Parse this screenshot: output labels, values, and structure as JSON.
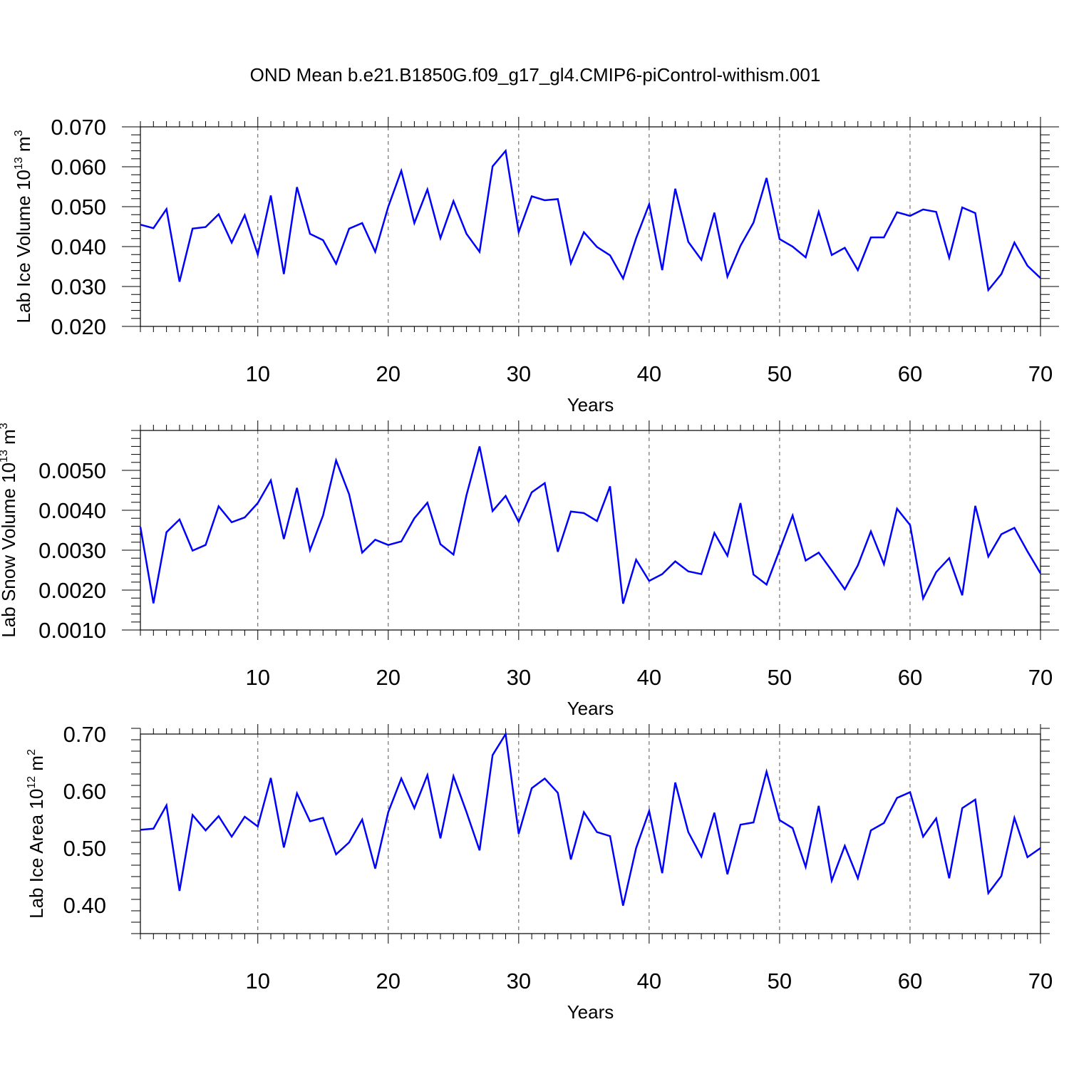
{
  "title": "OND Mean b.e21.B1850G.f09_g17_gl4.CMIP6-piControl-withism.001",
  "colors": {
    "line": "#0000ff",
    "axis": "#000000",
    "grid": "#555555",
    "background": "#ffffff"
  },
  "chart_data": [
    {
      "type": "line",
      "title": "OND Mean b.e21.B1850G.f09_g17_gl4.CMIP6-piControl-withism.001",
      "xlabel": "Years",
      "ylabel_parts": {
        "base": "Lab Ice Volume 10",
        "exp": "13",
        "unit": " m",
        "unit_exp": "3"
      },
      "xlim": [
        1,
        70
      ],
      "ylim": [
        0.02,
        0.07
      ],
      "yticks": [
        0.02,
        0.03,
        0.04,
        0.05,
        0.06,
        0.07
      ],
      "ytick_labels": [
        "0.020",
        "0.030",
        "0.040",
        "0.050",
        "0.060",
        "0.070"
      ],
      "xticks": [
        10,
        20,
        30,
        40,
        50,
        60,
        70
      ],
      "xtick_labels": [
        "10",
        "20",
        "30",
        "40",
        "50",
        "60",
        "70"
      ],
      "grid": "vertical-dashed",
      "x": [
        1,
        2,
        3,
        4,
        5,
        6,
        7,
        8,
        9,
        10,
        11,
        12,
        13,
        14,
        15,
        16,
        17,
        18,
        19,
        20,
        21,
        22,
        23,
        24,
        25,
        26,
        27,
        28,
        29,
        30,
        31,
        32,
        33,
        34,
        35,
        36,
        37,
        38,
        39,
        40,
        41,
        42,
        43,
        44,
        45,
        46,
        47,
        48,
        49,
        50,
        51,
        52,
        53,
        54,
        55,
        56,
        57,
        58,
        59,
        60,
        61,
        62,
        63,
        64,
        65,
        66,
        67,
        68,
        69,
        70
      ],
      "series": [
        {
          "name": "Lab Ice Volume",
          "values": [
            0.0455,
            0.0446,
            0.0494,
            0.0312,
            0.0445,
            0.0449,
            0.0481,
            0.041,
            0.0479,
            0.038,
            0.0528,
            0.0331,
            0.0549,
            0.0432,
            0.0416,
            0.0357,
            0.0445,
            0.0459,
            0.0387,
            0.05,
            0.059,
            0.0459,
            0.0543,
            0.0421,
            0.0514,
            0.0432,
            0.0387,
            0.0601,
            0.064,
            0.0436,
            0.0526,
            0.0516,
            0.0519,
            0.0358,
            0.0436,
            0.0399,
            0.0378,
            0.032,
            0.0421,
            0.0506,
            0.0341,
            0.0545,
            0.0412,
            0.0367,
            0.0485,
            0.0325,
            0.0402,
            0.046,
            0.0572,
            0.0419,
            0.04,
            0.0373,
            0.0487,
            0.0379,
            0.0397,
            0.0341,
            0.0423,
            0.0423,
            0.0486,
            0.0477,
            0.0493,
            0.0487,
            0.0372,
            0.0498,
            0.0484,
            0.0291,
            0.0331,
            0.041,
            0.0352,
            0.0321
          ]
        }
      ]
    },
    {
      "type": "line",
      "xlabel": "Years",
      "ylabel_parts": {
        "base": "Lab Snow Volume 10",
        "exp": "13",
        "unit": " m",
        "unit_exp": "3"
      },
      "xlim": [
        1,
        70
      ],
      "ylim": [
        0.001,
        0.006
      ],
      "yticks": [
        0.001,
        0.002,
        0.003,
        0.004,
        0.005
      ],
      "ytick_labels": [
        "0.0010",
        "0.0020",
        "0.0030",
        "0.0040",
        "0.0050"
      ],
      "xticks": [
        10,
        20,
        30,
        40,
        50,
        60,
        70
      ],
      "xtick_labels": [
        "10",
        "20",
        "30",
        "40",
        "50",
        "60",
        "70"
      ],
      "grid": "vertical-dashed",
      "x": [
        1,
        2,
        3,
        4,
        5,
        6,
        7,
        8,
        9,
        10,
        11,
        12,
        13,
        14,
        15,
        16,
        17,
        18,
        19,
        20,
        21,
        22,
        23,
        24,
        25,
        26,
        27,
        28,
        29,
        30,
        31,
        32,
        33,
        34,
        35,
        36,
        37,
        38,
        39,
        40,
        41,
        42,
        43,
        44,
        45,
        46,
        47,
        48,
        49,
        50,
        51,
        52,
        53,
        54,
        55,
        56,
        57,
        58,
        59,
        60,
        61,
        62,
        63,
        64,
        65,
        66,
        67,
        68,
        69,
        70
      ],
      "series": [
        {
          "name": "Lab Snow Volume",
          "values": [
            0.00358,
            0.00167,
            0.00345,
            0.00377,
            0.00299,
            0.00313,
            0.0041,
            0.0037,
            0.00382,
            0.00418,
            0.00475,
            0.00328,
            0.00456,
            0.003,
            0.00387,
            0.00525,
            0.0044,
            0.00294,
            0.00326,
            0.00313,
            0.00322,
            0.0038,
            0.00419,
            0.00315,
            0.00289,
            0.00438,
            0.0056,
            0.00398,
            0.00436,
            0.00371,
            0.00445,
            0.00468,
            0.00296,
            0.00397,
            0.00393,
            0.00373,
            0.0046,
            0.00166,
            0.00276,
            0.00223,
            0.0024,
            0.00272,
            0.00247,
            0.0024,
            0.00343,
            0.00286,
            0.00418,
            0.00239,
            0.00214,
            0.003,
            0.00387,
            0.00274,
            0.00294,
            0.00249,
            0.00202,
            0.00262,
            0.00347,
            0.00265,
            0.00404,
            0.00363,
            0.00179,
            0.00245,
            0.0028,
            0.00187,
            0.00411,
            0.00284,
            0.0034,
            0.00356,
            0.00297,
            0.00242
          ]
        }
      ]
    },
    {
      "type": "line",
      "xlabel": "Years",
      "ylabel_parts": {
        "base": "Lab Ice Area 10",
        "exp": "12",
        "unit": " m",
        "unit_exp": "2"
      },
      "xlim": [
        1,
        70
      ],
      "ylim": [
        0.35,
        0.7
      ],
      "yticks": [
        0.4,
        0.5,
        0.6,
        0.7
      ],
      "ytick_labels": [
        "0.40",
        "0.50",
        "0.60",
        "0.70"
      ],
      "xticks": [
        10,
        20,
        30,
        40,
        50,
        60,
        70
      ],
      "xtick_labels": [
        "10",
        "20",
        "30",
        "40",
        "50",
        "60",
        "70"
      ],
      "grid": "vertical-dashed",
      "x": [
        1,
        2,
        3,
        4,
        5,
        6,
        7,
        8,
        9,
        10,
        11,
        12,
        13,
        14,
        15,
        16,
        17,
        18,
        19,
        20,
        21,
        22,
        23,
        24,
        25,
        26,
        27,
        28,
        29,
        30,
        31,
        32,
        33,
        34,
        35,
        36,
        37,
        38,
        39,
        40,
        41,
        42,
        43,
        44,
        45,
        46,
        47,
        48,
        49,
        50,
        51,
        52,
        53,
        54,
        55,
        56,
        57,
        58,
        59,
        60,
        61,
        62,
        63,
        64,
        65,
        66,
        67,
        68,
        69,
        70
      ],
      "series": [
        {
          "name": "Lab Ice Area",
          "values": [
            0.532,
            0.534,
            0.575,
            0.425,
            0.558,
            0.531,
            0.556,
            0.52,
            0.555,
            0.538,
            0.623,
            0.501,
            0.596,
            0.547,
            0.553,
            0.489,
            0.51,
            0.55,
            0.464,
            0.563,
            0.622,
            0.57,
            0.628,
            0.517,
            0.626,
            0.563,
            0.496,
            0.663,
            0.7,
            0.525,
            0.605,
            0.622,
            0.597,
            0.48,
            0.563,
            0.528,
            0.521,
            0.399,
            0.5,
            0.565,
            0.456,
            0.615,
            0.528,
            0.485,
            0.562,
            0.454,
            0.541,
            0.545,
            0.634,
            0.549,
            0.535,
            0.467,
            0.574,
            0.443,
            0.504,
            0.447,
            0.531,
            0.544,
            0.588,
            0.598,
            0.52,
            0.552,
            0.447,
            0.57,
            0.585,
            0.421,
            0.451,
            0.553,
            0.484,
            0.5
          ]
        }
      ]
    }
  ]
}
